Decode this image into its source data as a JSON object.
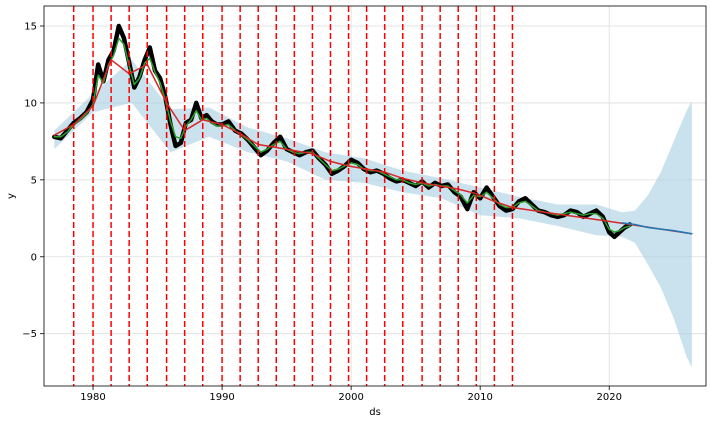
{
  "chart_data": {
    "type": "line",
    "title": "",
    "xlabel": "ds",
    "ylabel": "y",
    "xlim": [
      1976.2,
      2027.5
    ],
    "ylim": [
      -8.4,
      16.3
    ],
    "grid": true,
    "x_ticks": [
      1980,
      1990,
      2000,
      2010,
      2020
    ],
    "y_ticks": [
      -5,
      0,
      5,
      10,
      15
    ],
    "changepoints": [
      1978.5,
      1980.0,
      1981.4,
      1982.8,
      1984.2,
      1985.7,
      1987.1,
      1988.5,
      1990.0,
      1991.4,
      1992.8,
      1994.2,
      1995.6,
      1997.0,
      1998.4,
      1999.8,
      2001.2,
      2002.6,
      2004.0,
      2005.5,
      2006.9,
      2008.3,
      2009.7,
      2011.1,
      2012.5
    ],
    "series": [
      {
        "role": "observed",
        "color": "#000000",
        "x": [
          1977.0,
          1977.5,
          1978.0,
          1978.5,
          1979.0,
          1979.5,
          1980.0,
          1980.4,
          1980.8,
          1981.2,
          1981.6,
          1982.0,
          1982.4,
          1982.8,
          1983.2,
          1983.6,
          1984.0,
          1984.4,
          1984.8,
          1985.2,
          1985.6,
          1986.0,
          1986.4,
          1986.8,
          1987.2,
          1987.6,
          1988.0,
          1988.4,
          1988.8,
          1989.2,
          1989.6,
          1990.0,
          1990.5,
          1991.0,
          1991.5,
          1992.0,
          1992.5,
          1993.0,
          1993.5,
          1994.0,
          1994.5,
          1995.0,
          1995.5,
          1996.0,
          1996.5,
          1997.0,
          1997.5,
          1998.0,
          1998.5,
          1999.0,
          1999.5,
          2000.0,
          2000.5,
          2001.0,
          2001.5,
          2002.0,
          2002.5,
          2003.0,
          2003.5,
          2004.0,
          2004.5,
          2005.0,
          2005.5,
          2006.0,
          2006.5,
          2007.0,
          2007.5,
          2008.0,
          2008.5,
          2009.0,
          2009.5,
          2010.0,
          2010.5,
          2011.0,
          2011.5,
          2012.0,
          2012.5,
          2013.0,
          2013.5,
          2014.0,
          2014.5,
          2015.0,
          2015.5,
          2016.0,
          2016.5,
          2017.0,
          2017.5,
          2018.0,
          2018.5,
          2019.0,
          2019.5,
          2020.0,
          2020.4,
          2020.8,
          2021.2,
          2021.6
        ],
        "y": [
          7.8,
          7.7,
          8.2,
          8.7,
          9.0,
          9.4,
          10.2,
          12.5,
          11.4,
          12.8,
          13.4,
          15.0,
          14.2,
          12.6,
          11.0,
          11.7,
          12.8,
          13.6,
          12.1,
          11.6,
          10.4,
          8.6,
          7.2,
          7.4,
          8.7,
          8.9,
          10.0,
          9.0,
          9.2,
          8.8,
          8.6,
          8.6,
          8.8,
          8.2,
          8.0,
          7.6,
          7.1,
          6.6,
          6.9,
          7.4,
          7.8,
          7.0,
          6.8,
          6.6,
          6.8,
          6.9,
          6.4,
          6.0,
          5.4,
          5.6,
          5.9,
          6.3,
          6.1,
          5.7,
          5.5,
          5.6,
          5.4,
          5.1,
          4.9,
          5.0,
          4.8,
          4.6,
          4.9,
          4.5,
          4.8,
          4.6,
          4.7,
          4.2,
          3.9,
          3.1,
          4.2,
          3.8,
          4.5,
          3.9,
          3.3,
          3.0,
          3.1,
          3.6,
          3.8,
          3.4,
          3.0,
          2.9,
          2.7,
          2.6,
          2.7,
          3.0,
          2.9,
          2.6,
          2.8,
          3.0,
          2.6,
          1.6,
          1.3,
          1.6,
          1.9,
          2.1
        ]
      },
      {
        "role": "fitted",
        "color": "#2ca02c",
        "x": [
          1977.0,
          1977.5,
          1978.0,
          1978.5,
          1979.0,
          1979.5,
          1980.0,
          1980.4,
          1980.8,
          1981.2,
          1981.6,
          1982.0,
          1982.4,
          1982.8,
          1983.2,
          1983.6,
          1984.0,
          1984.4,
          1984.8,
          1985.2,
          1985.6,
          1986.0,
          1986.4,
          1986.8,
          1987.2,
          1987.6,
          1988.0,
          1988.4,
          1988.8,
          1989.2,
          1989.6,
          1990.0,
          1990.5,
          1991.0,
          1991.5,
          1992.0,
          1992.5,
          1993.0,
          1993.5,
          1994.0,
          1994.5,
          1995.0,
          1995.5,
          1996.0,
          1996.5,
          1997.0,
          1997.5,
          1998.0,
          1998.5,
          1999.0,
          1999.5,
          2000.0,
          2000.5,
          2001.0,
          2001.5,
          2002.0,
          2002.5,
          2003.0,
          2003.5,
          2004.0,
          2004.5,
          2005.0,
          2005.5,
          2006.0,
          2006.5,
          2007.0,
          2007.5,
          2008.0,
          2008.5,
          2009.0,
          2009.5,
          2010.0,
          2010.5,
          2011.0,
          2011.5,
          2012.0,
          2012.5,
          2013.0,
          2013.5,
          2014.0,
          2014.5,
          2015.0,
          2015.5,
          2016.0,
          2016.5,
          2017.0,
          2017.5,
          2018.0,
          2018.5,
          2019.0,
          2019.5,
          2020.0,
          2020.4,
          2020.8,
          2021.2,
          2021.6
        ],
        "y": [
          7.8,
          7.8,
          8.1,
          8.6,
          8.9,
          9.3,
          9.9,
          11.8,
          11.3,
          12.5,
          13.1,
          14.2,
          13.8,
          12.4,
          11.2,
          11.6,
          12.6,
          12.9,
          12.0,
          11.3,
          10.2,
          8.8,
          7.8,
          7.7,
          8.5,
          8.9,
          9.5,
          8.9,
          9.0,
          8.7,
          8.5,
          8.5,
          8.6,
          8.2,
          7.9,
          7.6,
          7.2,
          6.8,
          7.0,
          7.3,
          7.5,
          7.0,
          6.8,
          6.7,
          6.8,
          6.8,
          6.4,
          6.0,
          5.6,
          5.7,
          5.9,
          6.1,
          6.0,
          5.7,
          5.6,
          5.6,
          5.4,
          5.2,
          5.0,
          5.0,
          4.8,
          4.7,
          4.8,
          4.6,
          4.7,
          4.6,
          4.6,
          4.3,
          4.0,
          3.5,
          4.0,
          3.9,
          4.2,
          3.8,
          3.4,
          3.2,
          3.2,
          3.5,
          3.6,
          3.3,
          3.0,
          2.9,
          2.8,
          2.7,
          2.8,
          2.9,
          2.8,
          2.7,
          2.8,
          2.8,
          2.5,
          1.8,
          1.6,
          1.7,
          1.9,
          2.0
        ]
      },
      {
        "role": "trend",
        "color": "#d62728",
        "x": [
          1977.0,
          1978.5,
          1980.0,
          1981.4,
          1982.8,
          1984.2,
          1985.7,
          1987.1,
          1988.5,
          1990.0,
          1991.4,
          1992.8,
          1994.2,
          1995.6,
          1997.0,
          1998.4,
          1999.8,
          2001.2,
          2002.6,
          2004.0,
          2005.5,
          2006.9,
          2008.3,
          2009.7,
          2011.1,
          2012.5,
          2015.0,
          2020.0,
          2026.4
        ],
        "y": [
          7.9,
          8.6,
          9.8,
          12.8,
          11.9,
          12.5,
          10.0,
          8.2,
          8.9,
          8.6,
          8.0,
          7.3,
          7.1,
          6.9,
          6.7,
          6.2,
          5.9,
          5.7,
          5.5,
          5.1,
          4.8,
          4.6,
          4.4,
          4.1,
          3.6,
          3.2,
          2.9,
          2.3,
          1.5
        ]
      },
      {
        "role": "forecast",
        "color": "#1f77b4",
        "x": [
          2021.0,
          2022.0,
          2023.0,
          2024.0,
          2025.0,
          2026.4
        ],
        "y": [
          2.2,
          2.1,
          1.9,
          1.8,
          1.7,
          1.5
        ]
      }
    ],
    "uncertainty_band": {
      "color": "#a6cee3",
      "x": [
        1977.0,
        1980.0,
        1983.0,
        1986.0,
        1989.0,
        1992.0,
        1995.0,
        1998.0,
        2001.0,
        2004.0,
        2007.0,
        2010.0,
        2013.0,
        2016.0,
        2019.0,
        2021.0,
        2022.0,
        2023.0,
        2024.0,
        2025.0,
        2026.0,
        2026.4
      ],
      "upper": [
        8.2,
        10.6,
        12.8,
        9.6,
        9.7,
        8.4,
        7.7,
        6.8,
        6.4,
        5.6,
        5.1,
        4.5,
        3.9,
        3.4,
        3.4,
        2.9,
        3.0,
        4.0,
        5.5,
        7.5,
        9.5,
        10.1
      ],
      "lower": [
        7.0,
        9.4,
        10.0,
        6.8,
        7.8,
        6.8,
        6.2,
        5.0,
        4.8,
        4.2,
        3.8,
        2.7,
        2.5,
        2.0,
        1.4,
        1.3,
        0.9,
        -0.5,
        -2.0,
        -4.0,
        -6.5,
        -7.2
      ]
    }
  }
}
